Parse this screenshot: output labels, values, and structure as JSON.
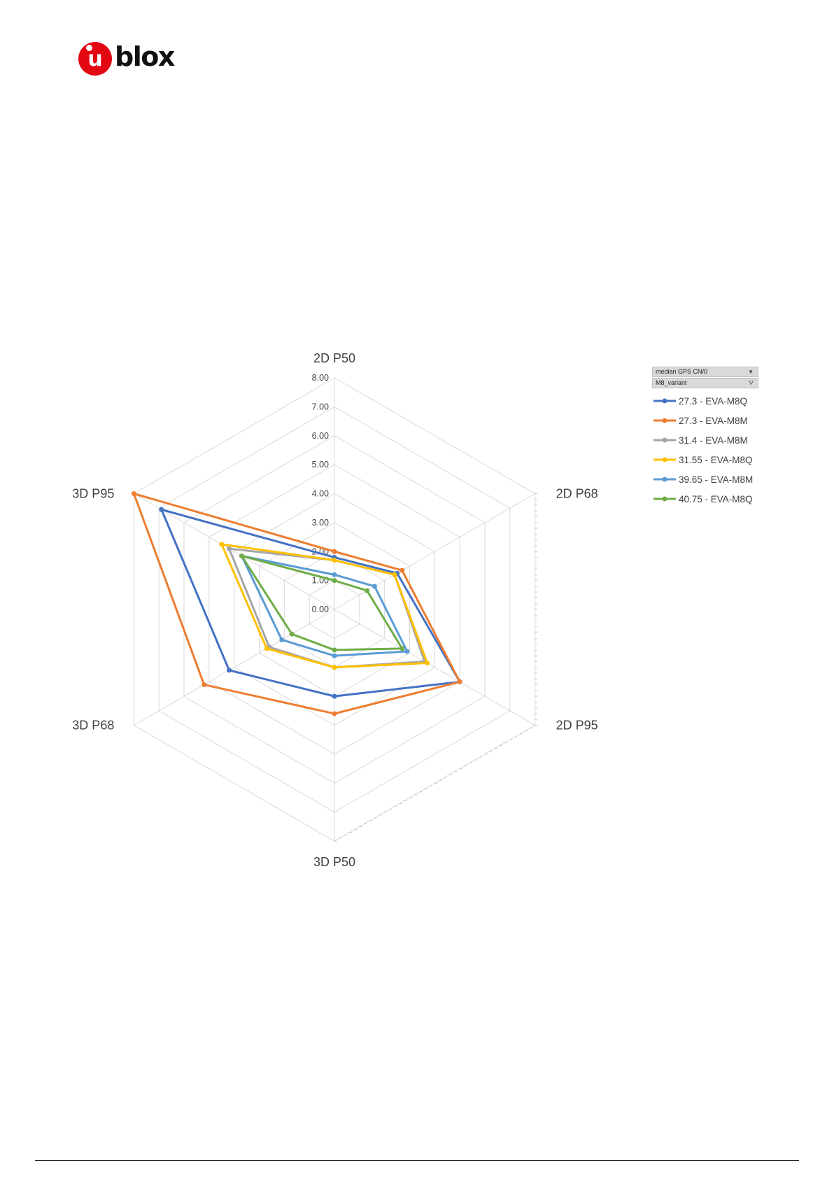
{
  "logo": {
    "text": "ublox",
    "glyph": "u",
    "word": "blox"
  },
  "chart_data": {
    "type": "radar",
    "axes": [
      "2D P50",
      "2D P68",
      "2D P95",
      "3D P50",
      "3D P68",
      "3D P95"
    ],
    "tick_labels": [
      "0.00",
      "1.00",
      "2.00",
      "3.00",
      "4.00",
      "5.00",
      "6.00",
      "7.00",
      "8.00"
    ],
    "rlim": [
      0,
      8
    ],
    "grid": true,
    "legend_position": "right",
    "legend_header": {
      "field1": "median GPS CN/0",
      "field2": "M8_variant"
    },
    "series": [
      {
        "name": "27.3 - EVA-M8Q",
        "color": "#4472c4",
        "values": [
          1.8,
          2.5,
          5.0,
          3.0,
          4.2,
          6.9
        ]
      },
      {
        "name": "27.3 - EVA-M8M",
        "color": "#ed7d31",
        "values": [
          2.0,
          2.7,
          5.0,
          3.6,
          5.2,
          8.0
        ]
      },
      {
        "name": "31.4 - EVA-M8M",
        "color": "#a5a5a5",
        "values": [
          1.7,
          2.4,
          3.6,
          2.0,
          2.6,
          4.2
        ]
      },
      {
        "name": "31.55 - EVA-M8Q",
        "color": "#ffc000",
        "values": [
          1.7,
          2.4,
          3.7,
          2.0,
          2.7,
          4.5
        ]
      },
      {
        "name": "39.65 - EVA-M8M",
        "color": "#5b9bd5",
        "values": [
          1.2,
          1.6,
          2.9,
          1.6,
          2.1,
          3.7
        ]
      },
      {
        "name": "40.75 - EVA-M8Q",
        "color": "#70ad47",
        "values": [
          1.0,
          1.3,
          2.7,
          1.4,
          1.7,
          3.7
        ]
      }
    ]
  }
}
